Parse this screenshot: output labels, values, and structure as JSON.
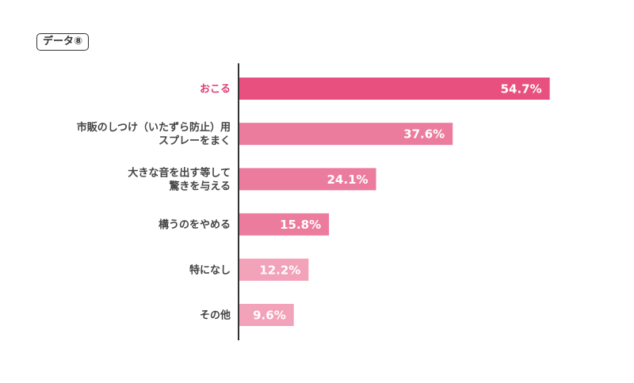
{
  "tag": "データ⑧",
  "chart_data": {
    "type": "bar",
    "orientation": "horizontal",
    "categories": [
      [
        "おこる"
      ],
      [
        "市販のしつけ（いたずら防止）用",
        "スプレーをまく"
      ],
      [
        "大きな音を出す等して",
        "驚きを与える"
      ],
      [
        "構うのをやめる"
      ],
      [
        "特になし"
      ],
      [
        "その他"
      ]
    ],
    "values": [
      54.7,
      37.6,
      24.1,
      15.8,
      12.2,
      9.6
    ],
    "value_labels": [
      "54.7%",
      "37.6%",
      "24.1%",
      "15.8%",
      "12.2%",
      "9.6%"
    ],
    "unit": "%",
    "bar_colors": [
      "#e8507f",
      "#ec7c9e",
      "#ec7c9e",
      "#ec7c9e",
      "#f2a2b9",
      "#f2a2b9"
    ],
    "label_colors": [
      "#e03d73",
      "#444444",
      "#444444",
      "#444444",
      "#444444",
      "#444444"
    ],
    "axis_color": "#333333",
    "xlim": [
      0,
      100
    ],
    "grid": false,
    "legend": "none"
  }
}
